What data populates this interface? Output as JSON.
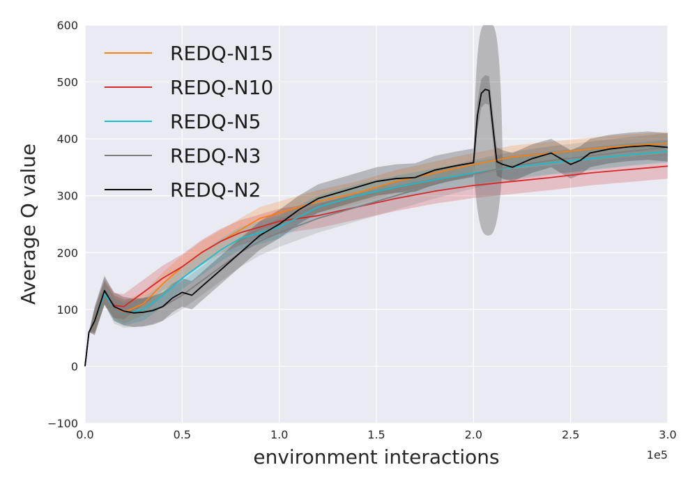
{
  "chart_data": {
    "type": "line",
    "xlabel": "environment interactions",
    "ylabel": "Average Q value",
    "x_offset_label": "1e5",
    "xlim": [
      0,
      3.0
    ],
    "ylim": [
      -100,
      600
    ],
    "x_ticks": [
      "0.0",
      "0.5",
      "1.0",
      "1.5",
      "2.0",
      "2.5",
      "3.0"
    ],
    "y_ticks": [
      "−100",
      "0",
      "100",
      "200",
      "300",
      "400",
      "500",
      "600"
    ],
    "grid": true,
    "legend_position": "upper-left",
    "series": [
      {
        "name": "REDQ-N15",
        "color": "#ff7f0e",
        "x": [
          0,
          0.02,
          0.05,
          0.1,
          0.15,
          0.2,
          0.3,
          0.4,
          0.5,
          0.6,
          0.7,
          0.8,
          0.9,
          1.0,
          1.2,
          1.4,
          1.6,
          1.8,
          2.0,
          2.2,
          2.4,
          2.6,
          2.8,
          3.0
        ],
        "y": [
          0,
          60,
          80,
          130,
          105,
          95,
          110,
          145,
          175,
          200,
          220,
          240,
          260,
          270,
          290,
          305,
          325,
          340,
          355,
          368,
          375,
          382,
          388,
          392
        ],
        "band": 20
      },
      {
        "name": "REDQ-N10",
        "color": "#d62728",
        "x": [
          0,
          0.02,
          0.05,
          0.1,
          0.15,
          0.2,
          0.3,
          0.4,
          0.5,
          0.6,
          0.7,
          0.8,
          0.9,
          1.0,
          1.2,
          1.4,
          1.6,
          1.8,
          2.0,
          2.2,
          2.4,
          2.6,
          2.8,
          3.0
        ],
        "y": [
          0,
          60,
          80,
          130,
          107,
          105,
          130,
          155,
          175,
          200,
          220,
          235,
          245,
          255,
          265,
          280,
          295,
          308,
          318,
          325,
          332,
          340,
          346,
          352
        ],
        "band": 22
      },
      {
        "name": "REDQ-N5",
        "color": "#17becf",
        "x": [
          0,
          0.02,
          0.05,
          0.1,
          0.15,
          0.2,
          0.3,
          0.4,
          0.5,
          0.6,
          0.7,
          0.8,
          0.9,
          1.0,
          1.2,
          1.4,
          1.6,
          1.8,
          2.0,
          2.2,
          2.4,
          2.6,
          2.8,
          3.0
        ],
        "y": [
          0,
          60,
          80,
          128,
          100,
          92,
          100,
          125,
          155,
          180,
          205,
          225,
          235,
          245,
          280,
          300,
          315,
          328,
          340,
          350,
          358,
          365,
          372,
          378
        ],
        "band": 20
      },
      {
        "name": "REDQ-N3",
        "color": "#7f7f7f",
        "x": [
          0,
          0.02,
          0.05,
          0.1,
          0.15,
          0.2,
          0.3,
          0.4,
          0.5,
          0.6,
          0.7,
          0.8,
          0.9,
          1.0,
          1.2,
          1.4,
          1.6,
          1.8,
          2.0,
          2.2,
          2.4,
          2.6,
          2.8,
          3.0
        ],
        "y": [
          0,
          60,
          80,
          135,
          100,
          93,
          95,
          105,
          125,
          150,
          175,
          200,
          220,
          235,
          260,
          280,
          300,
          320,
          338,
          352,
          362,
          370,
          378,
          385
        ],
        "band": 25
      },
      {
        "name": "REDQ-N2",
        "color": "#000000",
        "x": [
          0,
          0.02,
          0.05,
          0.1,
          0.15,
          0.2,
          0.25,
          0.3,
          0.35,
          0.4,
          0.45,
          0.5,
          0.55,
          0.6,
          0.7,
          0.8,
          0.9,
          1.0,
          1.1,
          1.2,
          1.3,
          1.4,
          1.5,
          1.6,
          1.7,
          1.8,
          1.9,
          2.0,
          2.02,
          2.04,
          2.06,
          2.08,
          2.1,
          2.12,
          2.15,
          2.2,
          2.3,
          2.4,
          2.45,
          2.5,
          2.55,
          2.6,
          2.7,
          2.8,
          2.9,
          3.0
        ],
        "y": [
          0,
          60,
          80,
          133,
          105,
          97,
          94,
          95,
          98,
          105,
          120,
          130,
          125,
          140,
          170,
          200,
          230,
          250,
          275,
          295,
          305,
          315,
          325,
          330,
          332,
          345,
          352,
          358,
          440,
          480,
          487,
          485,
          420,
          360,
          355,
          350,
          365,
          375,
          365,
          355,
          362,
          375,
          382,
          386,
          388,
          385
        ],
        "band": 25,
        "spike": {
          "x_from": 2.0,
          "x_to": 2.15,
          "low": 230,
          "high": 600
        }
      }
    ]
  }
}
